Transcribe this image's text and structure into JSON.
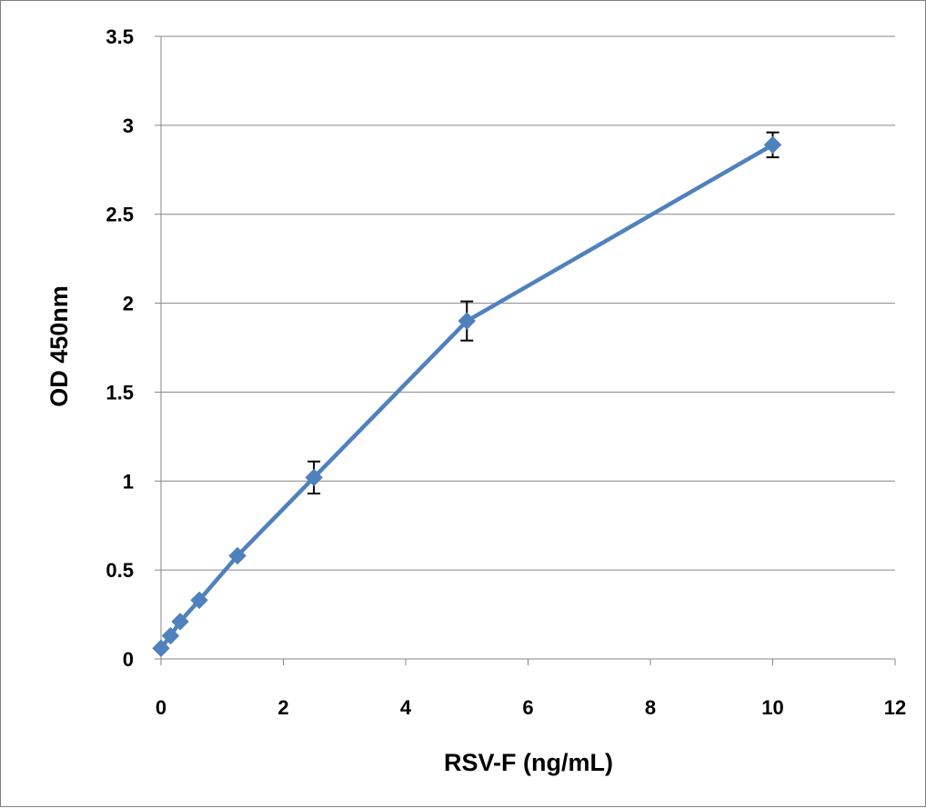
{
  "chart_data": {
    "type": "scatter",
    "title": "",
    "xlabel": "RSV-F (ng/mL)",
    "ylabel": "OD 450nm",
    "xlim": [
      0,
      12
    ],
    "ylim": [
      0,
      3.5
    ],
    "xticks": [
      "0",
      "2",
      "4",
      "6",
      "8",
      "10",
      "12"
    ],
    "yticks": [
      "0",
      "0.5",
      "1",
      "1.5",
      "2",
      "2.5",
      "3",
      "3.5"
    ],
    "grid": "horizontal",
    "legend": "none",
    "series": [
      {
        "color": "#4f81bd",
        "marker": "diamond",
        "x": [
          0,
          0.156,
          0.3125,
          0.625,
          1.25,
          2.5,
          5,
          10
        ],
        "y": [
          0.06,
          0.13,
          0.21,
          0.33,
          0.58,
          1.02,
          1.9,
          2.89
        ],
        "error": [
          0,
          0,
          0,
          0,
          0,
          0.09,
          0.11,
          0.07
        ]
      }
    ]
  }
}
